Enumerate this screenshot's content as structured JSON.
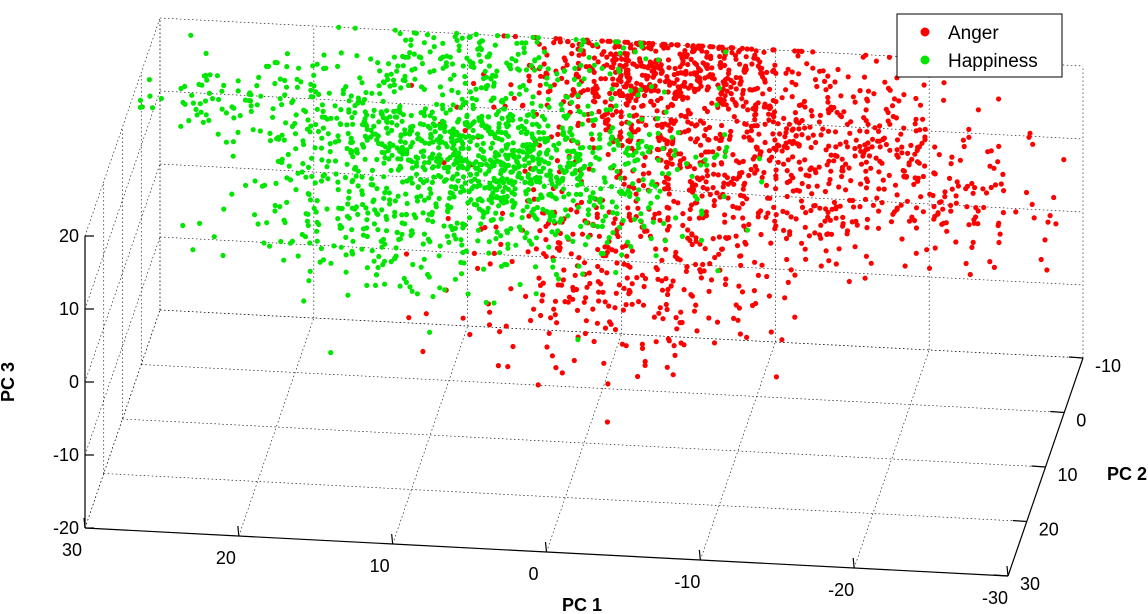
{
  "chart_data": {
    "type": "scatter",
    "projection": "3d",
    "grid": true,
    "legend_position": "top-right",
    "xlabel": "PC 1",
    "ylabel": "PC 2",
    "zlabel": "PC 3",
    "xlim": [
      -30,
      30
    ],
    "ylim": [
      -10,
      30
    ],
    "zlim": [
      -20,
      20
    ],
    "x_ticks": [
      "30",
      "20",
      "10",
      "0",
      "-10",
      "-20",
      "-30"
    ],
    "y_ticks": [
      "-10",
      "0",
      "10",
      "20",
      "30"
    ],
    "z_ticks": [
      "20",
      "10",
      "0",
      "-10",
      "-20"
    ],
    "series": [
      {
        "name": "Anger",
        "color": "#ff0000",
        "clusters": [
          {
            "x": -3,
            "y": -6,
            "z": 19,
            "sx": 4.5,
            "sy": 5,
            "sz": 3,
            "n": 550
          },
          {
            "x": -11,
            "y": -2,
            "z": 14,
            "sx": 6,
            "sy": 7,
            "sz": 4,
            "n": 450
          },
          {
            "x": -4,
            "y": 8,
            "z": 8,
            "sx": 6,
            "sy": 6,
            "sz": 5,
            "n": 300
          },
          {
            "x": -18,
            "y": 0,
            "z": 9,
            "sx": 5,
            "sy": 6,
            "sz": 3,
            "n": 160
          },
          {
            "x": -23,
            "y": -1,
            "z": 7,
            "sx": 3,
            "sy": 3,
            "sz": 2,
            "n": 40
          },
          {
            "x": -2,
            "y": 12,
            "z": 0,
            "sx": 5,
            "sy": 5,
            "sz": 4,
            "n": 120
          }
        ]
      },
      {
        "name": "Happiness",
        "color": "#00e600",
        "clusters": [
          {
            "x": 8,
            "y": 1,
            "z": 12,
            "sx": 6,
            "sy": 5,
            "sz": 3,
            "n": 550
          },
          {
            "x": 15,
            "y": 0,
            "z": 15,
            "sx": 5,
            "sy": 4,
            "sz": 3,
            "n": 220
          },
          {
            "x": 3,
            "y": 2,
            "z": 10,
            "sx": 5,
            "sy": 5,
            "sz": 3,
            "n": 320
          },
          {
            "x": 13,
            "y": 6,
            "z": 4,
            "sx": 6,
            "sy": 4,
            "sz": 3,
            "n": 220
          },
          {
            "x": 24,
            "y": -3,
            "z": 15,
            "sx": 3,
            "sy": 3,
            "sz": 2,
            "n": 60
          },
          {
            "x": 8,
            "y": -6,
            "z": 22,
            "sx": 5,
            "sy": 3,
            "sz": 2,
            "n": 160
          }
        ]
      }
    ]
  }
}
